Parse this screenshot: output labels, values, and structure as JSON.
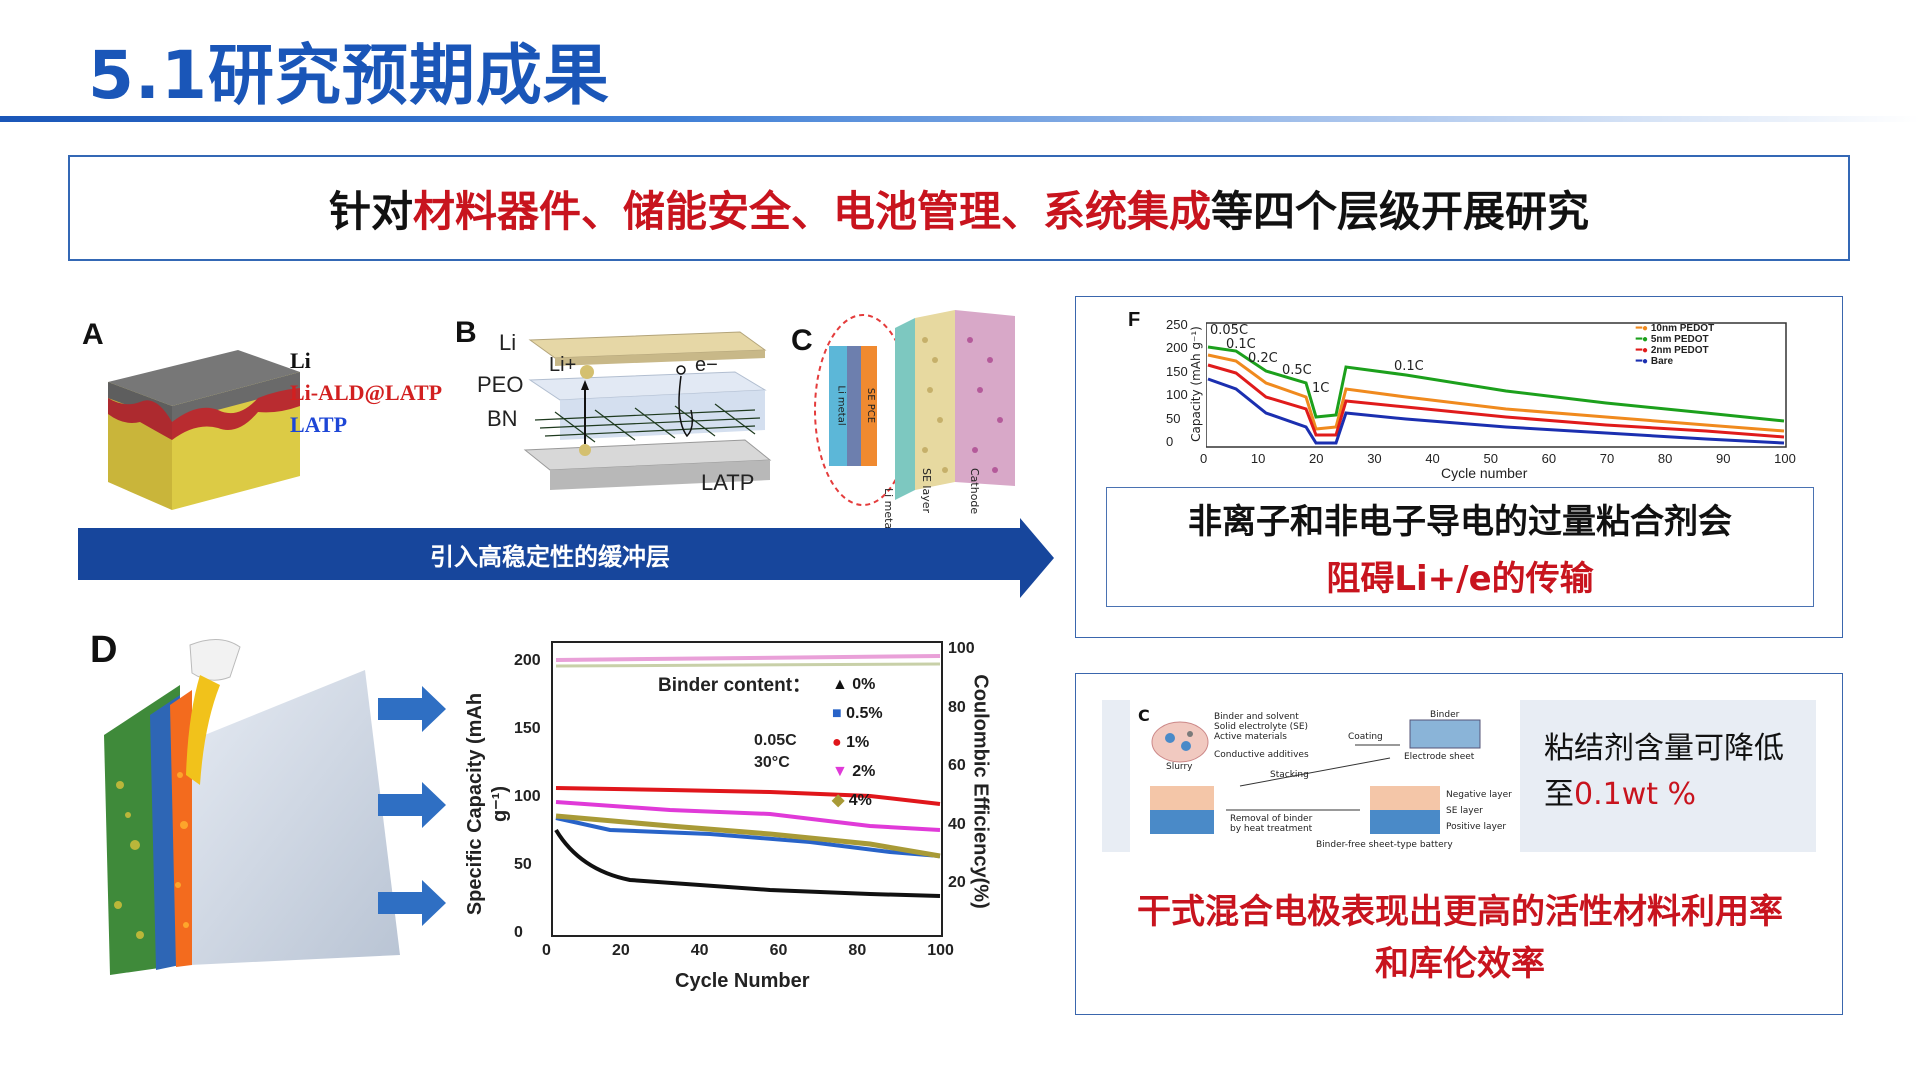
{
  "title": "5.1研究预期成果",
  "banner": {
    "prefix": "针对",
    "highlight": "材料器件、储能安全、电池管理、系统集成",
    "suffix": "等四个层级开展研究"
  },
  "panelA": {
    "label": "A",
    "layers": [
      "Li",
      "Li-ALD@LATP",
      "LATP"
    ],
    "colors": {
      "top": "#6e6e6e",
      "mid": "#b3242a",
      "bottom": "#d8c53c",
      "label_li": "#111111",
      "label_ald": "#d22020",
      "label_latp": "#1d46d6"
    }
  },
  "panelB": {
    "label": "B",
    "labels": [
      "Li",
      "PEO",
      "BN",
      "LATP"
    ],
    "ions": [
      "Li+",
      "e−"
    ]
  },
  "panelC": {
    "label": "C",
    "inset_labels": [
      "Li metal",
      "SE PCE"
    ],
    "side_labels": [
      "Li metal",
      "SE layer",
      "Cathode"
    ]
  },
  "arrow_bar": {
    "label": "引入高稳定性的缓冲层"
  },
  "panelD": {
    "label": "D"
  },
  "chart_d": {
    "ylabel_left": "Specific Capacity (mAh g⁻¹)",
    "ylabel_right": "Coulombic Efficiency(%)",
    "xlabel": "Cycle Number",
    "legend_title": "Binder content：",
    "legend": [
      "0%",
      "0.5%",
      "1%",
      "2%",
      "4%"
    ],
    "conditions": [
      "0.05C",
      "30°C"
    ],
    "x_ticks": [
      "0",
      "20",
      "40",
      "60",
      "80",
      "100"
    ],
    "y_ticks_left": [
      "0",
      "50",
      "100",
      "150",
      "200"
    ],
    "y_ticks_right": [
      "20",
      "40",
      "60",
      "80",
      "100"
    ]
  },
  "chart_f": {
    "label": "F",
    "ylabel": "Capacity (mAh g⁻¹)",
    "xlabel": "Cycle number",
    "rate_labels": [
      "0.05C",
      "0.1C",
      "0.2C",
      "0.5C",
      "1C",
      "0.1C"
    ],
    "legend": [
      "10nm PEDOT",
      "5nm PEDOT",
      "2nm PEDOT",
      "Bare"
    ],
    "x_ticks": [
      "0",
      "10",
      "20",
      "30",
      "40",
      "50",
      "60",
      "70",
      "80",
      "90",
      "100"
    ],
    "y_ticks": [
      "0",
      "50",
      "100",
      "150",
      "200",
      "250"
    ]
  },
  "right_top": {
    "line1": "非离子和非电子导电的过量粘合剂会",
    "line2": "阻碍Li+/e的传输"
  },
  "right_bottom": {
    "diagram": {
      "label": "C",
      "items": [
        "Binder and solvent",
        "Solid electrolyte (SE)",
        "Active materials",
        "Conductive additives",
        "Slurry",
        "Coating",
        "Binder",
        "Electrode sheet",
        "Stacking",
        "Removal of binder",
        "by heat treatment",
        "Negative layer",
        "SE layer",
        "Positive layer",
        "Binder-free sheet-type battery"
      ]
    },
    "note_line1": "粘结剂含量可降低",
    "note_line2_prefix": "至",
    "note_line2_value": "0.1wt %",
    "bottom_line1": "干式混合电极表现出更高的活性材料利用率",
    "bottom_line2": "和库伦效率"
  }
}
